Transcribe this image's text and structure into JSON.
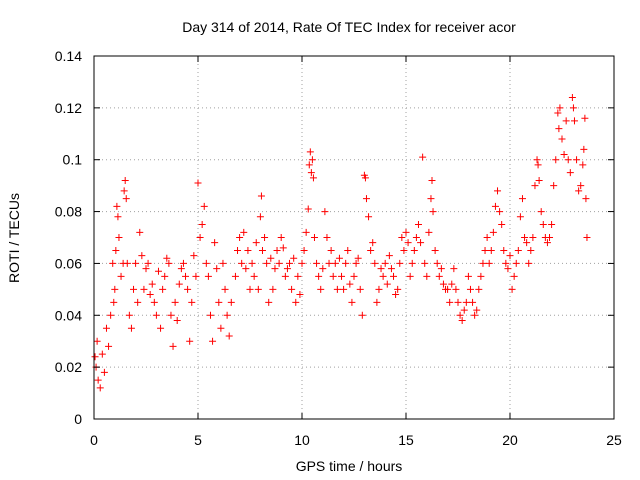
{
  "chart_data": {
    "type": "scatter",
    "title": "Day 314 of 2014, Rate Of TEC Index for receiver acor",
    "xlabel": "GPS time / hours",
    "ylabel": "ROTI / TECUs",
    "xlim": [
      0,
      25
    ],
    "ylim": [
      0,
      0.14
    ],
    "xticks": [
      0,
      5,
      10,
      15,
      20,
      25
    ],
    "yticks": [
      0,
      0.02,
      0.04,
      0.06,
      0.08,
      0.1,
      0.12,
      0.14
    ],
    "xtick_labels": [
      "0",
      "5",
      "10",
      "15",
      "20",
      "25"
    ],
    "ytick_labels": [
      "0",
      "0.02",
      "0.04",
      "0.06",
      "0.08",
      "0.1",
      "0.12",
      "0.14"
    ],
    "grid": true,
    "marker": "+",
    "color": "#ff0000",
    "series": [
      {
        "name": "ROTI",
        "points": [
          [
            0.05,
            0.024
          ],
          [
            0.1,
            0.02
          ],
          [
            0.15,
            0.03
          ],
          [
            0.2,
            0.015
          ],
          [
            0.3,
            0.012
          ],
          [
            0.4,
            0.025
          ],
          [
            0.5,
            0.018
          ],
          [
            0.6,
            0.035
          ],
          [
            0.7,
            0.028
          ],
          [
            0.8,
            0.04
          ],
          [
            0.9,
            0.06
          ],
          [
            0.95,
            0.045
          ],
          [
            1.0,
            0.05
          ],
          [
            1.05,
            0.065
          ],
          [
            1.1,
            0.082
          ],
          [
            1.15,
            0.078
          ],
          [
            1.2,
            0.07
          ],
          [
            1.3,
            0.055
          ],
          [
            1.4,
            0.06
          ],
          [
            1.45,
            0.088
          ],
          [
            1.5,
            0.092
          ],
          [
            1.55,
            0.085
          ],
          [
            1.6,
            0.06
          ],
          [
            1.7,
            0.04
          ],
          [
            1.8,
            0.035
          ],
          [
            1.9,
            0.05
          ],
          [
            2.0,
            0.06
          ],
          [
            2.1,
            0.045
          ],
          [
            2.2,
            0.072
          ],
          [
            2.3,
            0.063
          ],
          [
            2.4,
            0.05
          ],
          [
            2.5,
            0.058
          ],
          [
            2.6,
            0.06
          ],
          [
            2.7,
            0.048
          ],
          [
            2.8,
            0.052
          ],
          [
            2.9,
            0.045
          ],
          [
            3.0,
            0.04
          ],
          [
            3.1,
            0.057
          ],
          [
            3.2,
            0.035
          ],
          [
            3.3,
            0.05
          ],
          [
            3.4,
            0.055
          ],
          [
            3.5,
            0.062
          ],
          [
            3.6,
            0.06
          ],
          [
            3.7,
            0.04
          ],
          [
            3.8,
            0.028
          ],
          [
            3.9,
            0.045
          ],
          [
            4.0,
            0.038
          ],
          [
            4.1,
            0.052
          ],
          [
            4.2,
            0.058
          ],
          [
            4.3,
            0.06
          ],
          [
            4.4,
            0.055
          ],
          [
            4.5,
            0.05
          ],
          [
            4.6,
            0.03
          ],
          [
            4.7,
            0.045
          ],
          [
            4.8,
            0.063
          ],
          [
            4.9,
            0.055
          ],
          [
            5.0,
            0.091
          ],
          [
            5.1,
            0.07
          ],
          [
            5.2,
            0.075
          ],
          [
            5.3,
            0.082
          ],
          [
            5.4,
            0.06
          ],
          [
            5.5,
            0.055
          ],
          [
            5.6,
            0.04
          ],
          [
            5.7,
            0.03
          ],
          [
            5.8,
            0.068
          ],
          [
            5.9,
            0.058
          ],
          [
            6.0,
            0.045
          ],
          [
            6.1,
            0.035
          ],
          [
            6.2,
            0.06
          ],
          [
            6.3,
            0.05
          ],
          [
            6.4,
            0.04
          ],
          [
            6.5,
            0.032
          ],
          [
            6.6,
            0.045
          ],
          [
            6.8,
            0.055
          ],
          [
            6.9,
            0.065
          ],
          [
            7.0,
            0.07
          ],
          [
            7.1,
            0.06
          ],
          [
            7.2,
            0.072
          ],
          [
            7.3,
            0.058
          ],
          [
            7.4,
            0.065
          ],
          [
            7.5,
            0.05
          ],
          [
            7.6,
            0.06
          ],
          [
            7.7,
            0.055
          ],
          [
            7.8,
            0.068
          ],
          [
            7.9,
            0.05
          ],
          [
            8.0,
            0.078
          ],
          [
            8.05,
            0.086
          ],
          [
            8.1,
            0.065
          ],
          [
            8.2,
            0.07
          ],
          [
            8.3,
            0.06
          ],
          [
            8.4,
            0.045
          ],
          [
            8.5,
            0.062
          ],
          [
            8.6,
            0.05
          ],
          [
            8.7,
            0.058
          ],
          [
            8.8,
            0.065
          ],
          [
            8.9,
            0.06
          ],
          [
            9.0,
            0.07
          ],
          [
            9.1,
            0.066
          ],
          [
            9.2,
            0.055
          ],
          [
            9.3,
            0.058
          ],
          [
            9.4,
            0.06
          ],
          [
            9.5,
            0.05
          ],
          [
            9.6,
            0.062
          ],
          [
            9.7,
            0.045
          ],
          [
            9.8,
            0.055
          ],
          [
            9.9,
            0.048
          ],
          [
            10.0,
            0.06
          ],
          [
            10.1,
            0.065
          ],
          [
            10.2,
            0.072
          ],
          [
            10.3,
            0.081
          ],
          [
            10.35,
            0.098
          ],
          [
            10.4,
            0.103
          ],
          [
            10.45,
            0.095
          ],
          [
            10.5,
            0.1
          ],
          [
            10.55,
            0.093
          ],
          [
            10.6,
            0.07
          ],
          [
            10.7,
            0.06
          ],
          [
            10.8,
            0.055
          ],
          [
            10.9,
            0.05
          ],
          [
            11.0,
            0.058
          ],
          [
            11.1,
            0.08
          ],
          [
            11.2,
            0.07
          ],
          [
            11.3,
            0.06
          ],
          [
            11.4,
            0.065
          ],
          [
            11.5,
            0.055
          ],
          [
            11.6,
            0.06
          ],
          [
            11.7,
            0.05
          ],
          [
            11.8,
            0.062
          ],
          [
            11.9,
            0.055
          ],
          [
            12.0,
            0.05
          ],
          [
            12.1,
            0.06
          ],
          [
            12.2,
            0.065
          ],
          [
            12.3,
            0.052
          ],
          [
            12.4,
            0.045
          ],
          [
            12.5,
            0.055
          ],
          [
            12.6,
            0.06
          ],
          [
            12.7,
            0.062
          ],
          [
            12.8,
            0.05
          ],
          [
            12.9,
            0.04
          ],
          [
            13.0,
            0.094
          ],
          [
            13.05,
            0.093
          ],
          [
            13.1,
            0.085
          ],
          [
            13.2,
            0.078
          ],
          [
            13.3,
            0.065
          ],
          [
            13.4,
            0.068
          ],
          [
            13.5,
            0.06
          ],
          [
            13.6,
            0.045
          ],
          [
            13.7,
            0.05
          ],
          [
            13.8,
            0.058
          ],
          [
            13.9,
            0.055
          ],
          [
            14.0,
            0.06
          ],
          [
            14.1,
            0.052
          ],
          [
            14.2,
            0.063
          ],
          [
            14.3,
            0.058
          ],
          [
            14.4,
            0.055
          ],
          [
            14.5,
            0.048
          ],
          [
            14.6,
            0.05
          ],
          [
            14.7,
            0.06
          ],
          [
            14.8,
            0.07
          ],
          [
            14.9,
            0.065
          ],
          [
            15.0,
            0.072
          ],
          [
            15.1,
            0.068
          ],
          [
            15.2,
            0.055
          ],
          [
            15.3,
            0.06
          ],
          [
            15.4,
            0.065
          ],
          [
            15.5,
            0.07
          ],
          [
            15.6,
            0.075
          ],
          [
            15.7,
            0.068
          ],
          [
            15.8,
            0.101
          ],
          [
            15.9,
            0.06
          ],
          [
            16.0,
            0.055
          ],
          [
            16.1,
            0.072
          ],
          [
            16.2,
            0.085
          ],
          [
            16.25,
            0.092
          ],
          [
            16.3,
            0.08
          ],
          [
            16.4,
            0.065
          ],
          [
            16.5,
            0.06
          ],
          [
            16.6,
            0.055
          ],
          [
            16.7,
            0.058
          ],
          [
            16.8,
            0.052
          ],
          [
            16.9,
            0.05
          ],
          [
            17.0,
            0.05
          ],
          [
            17.1,
            0.045
          ],
          [
            17.2,
            0.052
          ],
          [
            17.3,
            0.058
          ],
          [
            17.4,
            0.05
          ],
          [
            17.5,
            0.045
          ],
          [
            17.6,
            0.04
          ],
          [
            17.7,
            0.038
          ],
          [
            17.8,
            0.042
          ],
          [
            17.9,
            0.045
          ],
          [
            18.0,
            0.055
          ],
          [
            18.1,
            0.05
          ],
          [
            18.2,
            0.045
          ],
          [
            18.3,
            0.04
          ],
          [
            18.4,
            0.042
          ],
          [
            18.5,
            0.05
          ],
          [
            18.6,
            0.055
          ],
          [
            18.7,
            0.06
          ],
          [
            18.8,
            0.065
          ],
          [
            18.9,
            0.07
          ],
          [
            19.0,
            0.06
          ],
          [
            19.1,
            0.065
          ],
          [
            19.2,
            0.072
          ],
          [
            19.3,
            0.082
          ],
          [
            19.4,
            0.088
          ],
          [
            19.5,
            0.08
          ],
          [
            19.6,
            0.075
          ],
          [
            19.7,
            0.065
          ],
          [
            19.8,
            0.06
          ],
          [
            19.9,
            0.058
          ],
          [
            20.0,
            0.063
          ],
          [
            20.1,
            0.05
          ],
          [
            20.2,
            0.055
          ],
          [
            20.3,
            0.06
          ],
          [
            20.4,
            0.065
          ],
          [
            20.5,
            0.078
          ],
          [
            20.6,
            0.085
          ],
          [
            20.7,
            0.07
          ],
          [
            20.8,
            0.068
          ],
          [
            20.9,
            0.06
          ],
          [
            21.0,
            0.065
          ],
          [
            21.1,
            0.07
          ],
          [
            21.2,
            0.09
          ],
          [
            21.3,
            0.1
          ],
          [
            21.35,
            0.098
          ],
          [
            21.4,
            0.092
          ],
          [
            21.5,
            0.08
          ],
          [
            21.6,
            0.075
          ],
          [
            21.7,
            0.07
          ],
          [
            21.8,
            0.068
          ],
          [
            21.9,
            0.07
          ],
          [
            22.0,
            0.075
          ],
          [
            22.1,
            0.09
          ],
          [
            22.2,
            0.1
          ],
          [
            22.3,
            0.118
          ],
          [
            22.35,
            0.112
          ],
          [
            22.4,
            0.12
          ],
          [
            22.5,
            0.108
          ],
          [
            22.6,
            0.102
          ],
          [
            22.7,
            0.115
          ],
          [
            22.8,
            0.1
          ],
          [
            22.9,
            0.095
          ],
          [
            23.0,
            0.124
          ],
          [
            23.05,
            0.12
          ],
          [
            23.1,
            0.115
          ],
          [
            23.2,
            0.1
          ],
          [
            23.3,
            0.088
          ],
          [
            23.4,
            0.09
          ],
          [
            23.5,
            0.098
          ],
          [
            23.55,
            0.104
          ],
          [
            23.6,
            0.116
          ],
          [
            23.65,
            0.085
          ],
          [
            23.7,
            0.07
          ]
        ]
      }
    ]
  }
}
